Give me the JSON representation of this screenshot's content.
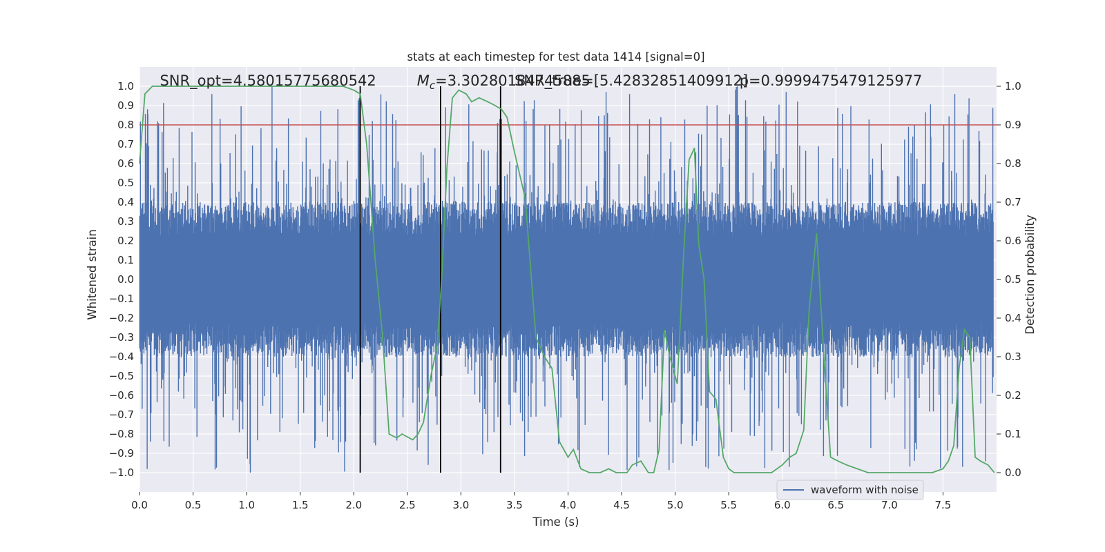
{
  "chart_data": {
    "type": "line",
    "title": "stats at each timestep for test data 1414 [signal=0]",
    "xlabel": "Time (s)",
    "ylabel": "Whitened strain",
    "ylabel_right": "Detection probability",
    "xlim": [
      0.0,
      8.0
    ],
    "ylim": [
      -1.1,
      1.1
    ],
    "ylim_right": [
      -0.05,
      1.05
    ],
    "x_ticks": [
      "0.0",
      "0.5",
      "1.0",
      "1.5",
      "2.0",
      "2.5",
      "3.0",
      "3.5",
      "4.0",
      "4.5",
      "5.0",
      "5.5",
      "6.0",
      "6.5",
      "7.0",
      "7.5"
    ],
    "y_ticks": [
      "1.0",
      "0.9",
      "0.8",
      "0.7",
      "0.6",
      "0.5",
      "0.4",
      "0.3",
      "0.2",
      "0.1",
      "0.0",
      "−0.1",
      "−0.2",
      "−0.3",
      "−0.4",
      "−0.5",
      "−0.6",
      "−0.7",
      "−0.8",
      "−0.9",
      "−1.0"
    ],
    "y_ticks_right": [
      "1.0",
      "0.9",
      "0.8",
      "0.7",
      "0.6",
      "0.5",
      "0.4",
      "0.3",
      "0.2",
      "0.1",
      "0.0"
    ],
    "grid": true,
    "legend": {
      "entries": [
        "waveform with noise"
      ],
      "placement": "lower-right"
    },
    "annotations": [
      {
        "label": "SNR_opt=4.58015775680542",
        "x": 0.19
      },
      {
        "label": "$M_c$=3.30280184745885",
        "x": 2.59
      },
      {
        "label": "SNR_true=[5.42832851409912]",
        "x": 3.5
      },
      {
        "label": "p=0.9999475479125977",
        "x": 5.6
      }
    ],
    "threshold": {
      "axis": "right",
      "value": 0.9,
      "color": "#c44e52"
    },
    "vlines": [
      2.06,
      2.81,
      3.37
    ],
    "series": [
      {
        "name": "waveform with noise",
        "axis": "left",
        "style": "dense noise band",
        "color": "#4c72b0",
        "typical_envelope": [
          -0.4,
          0.4
        ],
        "min": -1.0,
        "max": 1.0
      },
      {
        "axis": "right",
        "color": "#55a868",
        "x": [
          0.0,
          0.05,
          0.12,
          0.5,
          1.0,
          1.5,
          1.9,
          2.0,
          2.06,
          2.12,
          2.2,
          2.27,
          2.33,
          2.4,
          2.45,
          2.55,
          2.6,
          2.65,
          2.72,
          2.78,
          2.82,
          2.87,
          2.92,
          2.98,
          3.05,
          3.1,
          3.17,
          3.25,
          3.32,
          3.38,
          3.43,
          3.5,
          3.6,
          3.7,
          3.78,
          3.85,
          3.92,
          4.0,
          4.05,
          4.12,
          4.2,
          4.3,
          4.38,
          4.45,
          4.55,
          4.6,
          4.68,
          4.75,
          4.8,
          4.85,
          4.9,
          4.95,
          5.02,
          5.08,
          5.13,
          5.18,
          5.22,
          5.27,
          5.32,
          5.38,
          5.45,
          5.5,
          5.55,
          5.62,
          5.7,
          5.8,
          5.9,
          6.0,
          6.07,
          6.13,
          6.2,
          6.25,
          6.32,
          6.38,
          6.45,
          6.52,
          6.6,
          6.7,
          6.8,
          7.0,
          7.2,
          7.4,
          7.5,
          7.55,
          7.6,
          7.65,
          7.7,
          7.75,
          7.8,
          7.85,
          7.92,
          7.98
        ],
        "values": [
          0.8,
          0.98,
          1.0,
          1.0,
          1.0,
          1.0,
          1.0,
          0.99,
          0.98,
          0.85,
          0.55,
          0.35,
          0.1,
          0.09,
          0.1,
          0.085,
          0.1,
          0.13,
          0.25,
          0.33,
          0.5,
          0.79,
          0.97,
          0.99,
          0.98,
          0.96,
          0.97,
          0.96,
          0.95,
          0.94,
          0.92,
          0.83,
          0.71,
          0.35,
          0.3,
          0.27,
          0.08,
          0.04,
          0.06,
          0.01,
          0.0,
          0.0,
          0.01,
          0.0,
          0.0,
          0.02,
          0.03,
          0.0,
          0.0,
          0.06,
          0.37,
          0.3,
          0.23,
          0.57,
          0.81,
          0.84,
          0.59,
          0.5,
          0.21,
          0.19,
          0.04,
          0.01,
          0.0,
          0.0,
          0.0,
          0.0,
          0.0,
          0.02,
          0.04,
          0.05,
          0.11,
          0.42,
          0.62,
          0.34,
          0.04,
          0.03,
          0.02,
          0.01,
          0.0,
          0.0,
          0.0,
          0.0,
          0.01,
          0.03,
          0.07,
          0.27,
          0.37,
          0.35,
          0.04,
          0.03,
          0.02,
          0.0
        ]
      }
    ]
  }
}
